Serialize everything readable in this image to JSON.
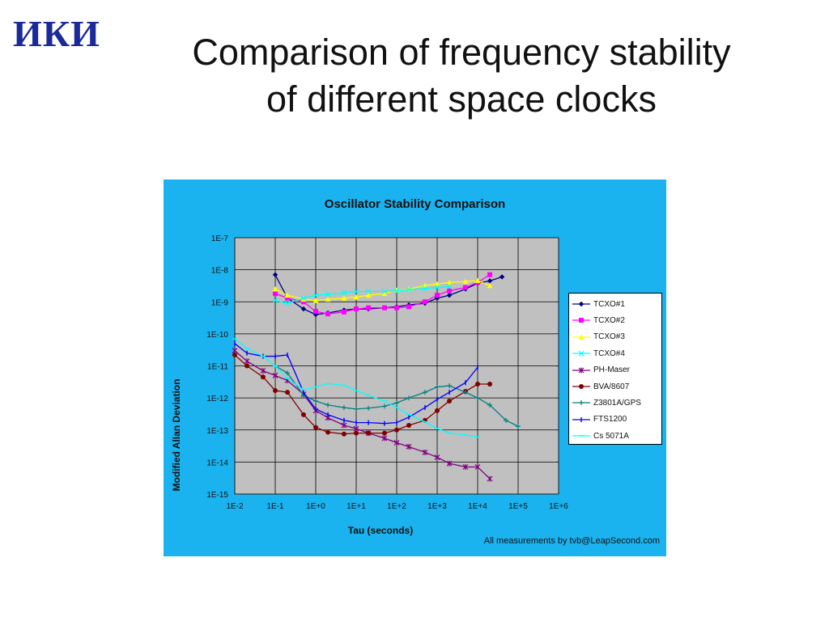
{
  "logo": {
    "text": "ИКИ"
  },
  "slide": {
    "title_line1": "Comparison of frequency stability",
    "title_line2": "of different space clocks"
  },
  "colors": {
    "chart_background": "#1ab3f0",
    "plot_background": "#c0c0c0",
    "gridline": "#000000",
    "logo": "#1b2a9a"
  },
  "chart_data": {
    "type": "line",
    "title": "Oscillator Stability Comparison",
    "xlabel": "Tau (seconds)",
    "ylabel": "Modified Allan Deviation",
    "annotation": "All measurements by tvb@LeapSecond.com",
    "x_scale": "log",
    "y_scale": "log",
    "xlim": [
      0.01,
      1000000
    ],
    "ylim": [
      1e-15,
      1e-07
    ],
    "x_tick_labels": [
      "1E-2",
      "1E-1",
      "1E+0",
      "1E+1",
      "1E+2",
      "1E+3",
      "1E+4",
      "1E+5",
      "1E+6"
    ],
    "y_tick_labels": [
      "1E-7",
      "1E-8",
      "1E-9",
      "1E-10",
      "1E-11",
      "1E-12",
      "1E-13",
      "1E-14",
      "1E-15"
    ],
    "grid": true,
    "legend_position": "right",
    "series": [
      {
        "name": "TCXO#1",
        "color": "#000080",
        "marker": "diamond",
        "points": [
          [
            0.1,
            7e-09
          ],
          [
            0.2,
            1.3e-09
          ],
          [
            0.5,
            6e-10
          ],
          [
            1,
            4e-10
          ],
          [
            2,
            4.5e-10
          ],
          [
            5,
            5.5e-10
          ],
          [
            10,
            6e-10
          ],
          [
            20,
            6e-10
          ],
          [
            50,
            6.5e-10
          ],
          [
            100,
            7e-10
          ],
          [
            200,
            8e-10
          ],
          [
            500,
            9e-10
          ],
          [
            1000,
            1.3e-09
          ],
          [
            2000,
            1.6e-09
          ],
          [
            5000,
            2.5e-09
          ],
          [
            10000,
            3.8e-09
          ],
          [
            20000,
            4.5e-09
          ],
          [
            40000,
            6e-09
          ]
        ]
      },
      {
        "name": "TCXO#2",
        "color": "#ff00ff",
        "marker": "square",
        "points": [
          [
            0.1,
            1.8e-09
          ],
          [
            0.2,
            1.3e-09
          ],
          [
            0.5,
            1e-09
          ],
          [
            1,
            5e-10
          ],
          [
            2,
            4.2e-10
          ],
          [
            5,
            4.8e-10
          ],
          [
            10,
            6e-10
          ],
          [
            20,
            6.5e-10
          ],
          [
            50,
            6.5e-10
          ],
          [
            100,
            6.5e-10
          ],
          [
            200,
            7e-10
          ],
          [
            500,
            1e-09
          ],
          [
            1000,
            1.6e-09
          ],
          [
            2000,
            2.2e-09
          ],
          [
            5000,
            2.8e-09
          ],
          [
            10000,
            4e-09
          ],
          [
            20000,
            7e-09
          ]
        ]
      },
      {
        "name": "TCXO#3",
        "color": "#ffff00",
        "marker": "triangle",
        "points": [
          [
            0.1,
            2.5e-09
          ],
          [
            0.2,
            1.6e-09
          ],
          [
            0.5,
            1.2e-09
          ],
          [
            1,
            1.1e-09
          ],
          [
            2,
            1.2e-09
          ],
          [
            5,
            1.3e-09
          ],
          [
            10,
            1.4e-09
          ],
          [
            20,
            1.6e-09
          ],
          [
            50,
            1.8e-09
          ],
          [
            100,
            2.3e-09
          ],
          [
            200,
            2.5e-09
          ],
          [
            500,
            3.2e-09
          ],
          [
            1000,
            3.6e-09
          ],
          [
            2000,
            4e-09
          ],
          [
            5000,
            4.3e-09
          ],
          [
            10000,
            4.6e-09
          ],
          [
            20000,
            3.2e-09
          ]
        ]
      },
      {
        "name": "TCXO#4",
        "color": "#00ffff",
        "marker": "x",
        "points": [
          [
            0.1,
            1.1e-09
          ],
          [
            0.2,
            9e-10
          ],
          [
            0.5,
            1.3e-09
          ],
          [
            1,
            1.6e-09
          ],
          [
            2,
            1.7e-09
          ],
          [
            5,
            1.9e-09
          ],
          [
            10,
            2.1e-09
          ],
          [
            20,
            2.1e-09
          ],
          [
            50,
            2.1e-09
          ],
          [
            100,
            2.2e-09
          ],
          [
            200,
            2.4e-09
          ],
          [
            500,
            2.6e-09
          ],
          [
            1000,
            2.8e-09
          ],
          [
            2000,
            3e-09
          ]
        ]
      },
      {
        "name": "PH-Maser",
        "color": "#800080",
        "marker": "star",
        "points": [
          [
            0.01,
            3e-11
          ],
          [
            0.02,
            1.4e-11
          ],
          [
            0.05,
            7e-12
          ],
          [
            0.1,
            5e-12
          ],
          [
            0.2,
            3.5e-12
          ],
          [
            0.5,
            1.3e-12
          ],
          [
            1,
            4e-13
          ],
          [
            2,
            2.4e-13
          ],
          [
            5,
            1.4e-13
          ],
          [
            10,
            1.1e-13
          ],
          [
            20,
            8e-14
          ],
          [
            50,
            5.5e-14
          ],
          [
            100,
            4e-14
          ],
          [
            200,
            3e-14
          ],
          [
            500,
            2e-14
          ],
          [
            1000,
            1.4e-14
          ],
          [
            2000,
            9e-15
          ],
          [
            5000,
            7e-15
          ],
          [
            10000,
            7e-15
          ],
          [
            20000,
            3e-15
          ]
        ]
      },
      {
        "name": "BVA/8607",
        "color": "#800000",
        "marker": "circle",
        "points": [
          [
            0.01,
            2.2e-11
          ],
          [
            0.02,
            1e-11
          ],
          [
            0.05,
            4.5e-12
          ],
          [
            0.1,
            1.7e-12
          ],
          [
            0.2,
            1.5e-12
          ],
          [
            0.5,
            3e-13
          ],
          [
            1,
            1.2e-13
          ],
          [
            2,
            8.5e-14
          ],
          [
            5,
            7.5e-14
          ],
          [
            10,
            8e-14
          ],
          [
            20,
            8e-14
          ],
          [
            50,
            8e-14
          ],
          [
            100,
            1e-13
          ],
          [
            200,
            1.4e-13
          ],
          [
            500,
            2e-13
          ],
          [
            1000,
            4e-13
          ],
          [
            2000,
            8e-13
          ],
          [
            5000,
            1.6e-12
          ],
          [
            10000,
            2.7e-12
          ],
          [
            20000,
            2.7e-12
          ]
        ]
      },
      {
        "name": "Z3801A/GPS",
        "color": "#008080",
        "marker": "plus",
        "points": [
          [
            0.1,
            1e-11
          ],
          [
            0.2,
            6e-12
          ],
          [
            0.5,
            1.2e-12
          ],
          [
            1,
            8e-13
          ],
          [
            2,
            6e-13
          ],
          [
            5,
            5e-13
          ],
          [
            10,
            4.5e-13
          ],
          [
            20,
            4.8e-13
          ],
          [
            50,
            5.5e-13
          ],
          [
            100,
            7e-13
          ],
          [
            200,
            1e-12
          ],
          [
            500,
            1.5e-12
          ],
          [
            1000,
            2.2e-12
          ],
          [
            2000,
            2.4e-12
          ],
          [
            5000,
            1.5e-12
          ],
          [
            10000,
            1e-12
          ],
          [
            20000,
            6e-13
          ],
          [
            50000,
            2e-13
          ],
          [
            100000,
            1.3e-13
          ]
        ]
      },
      {
        "name": "FTS1200",
        "color": "#0000ff",
        "marker": "bar",
        "points": [
          [
            0.01,
            5e-11
          ],
          [
            0.02,
            2.5e-11
          ],
          [
            0.05,
            2e-11
          ],
          [
            0.1,
            2e-11
          ],
          [
            0.2,
            2.2e-11
          ],
          [
            0.5,
            1.5e-12
          ],
          [
            1,
            4.5e-13
          ],
          [
            2,
            3e-13
          ],
          [
            5,
            2e-13
          ],
          [
            10,
            1.7e-13
          ],
          [
            20,
            1.7e-13
          ],
          [
            50,
            1.6e-13
          ],
          [
            100,
            1.7e-13
          ],
          [
            200,
            2.5e-13
          ],
          [
            500,
            5e-13
          ],
          [
            1000,
            9e-13
          ],
          [
            2000,
            1.5e-12
          ],
          [
            5000,
            3e-12
          ],
          [
            10000,
            9e-12
          ]
        ]
      },
      {
        "name": "Cs 5071A",
        "color": "#00ffff",
        "marker": "dash",
        "points": [
          [
            0.01,
            7e-11
          ],
          [
            0.02,
            3.5e-11
          ],
          [
            0.05,
            2e-11
          ],
          [
            0.1,
            1e-11
          ],
          [
            0.2,
            4e-12
          ],
          [
            0.5,
            1.8e-12
          ],
          [
            1,
            2.2e-12
          ],
          [
            2,
            2.8e-12
          ],
          [
            5,
            2.5e-12
          ],
          [
            10,
            1.7e-12
          ],
          [
            20,
            1.2e-12
          ],
          [
            50,
            8e-13
          ],
          [
            100,
            5e-13
          ],
          [
            200,
            3e-13
          ],
          [
            500,
            1.8e-13
          ],
          [
            1000,
            1.1e-13
          ],
          [
            2000,
            8e-14
          ],
          [
            5000,
            7e-14
          ],
          [
            10000,
            6e-14
          ]
        ]
      }
    ]
  }
}
